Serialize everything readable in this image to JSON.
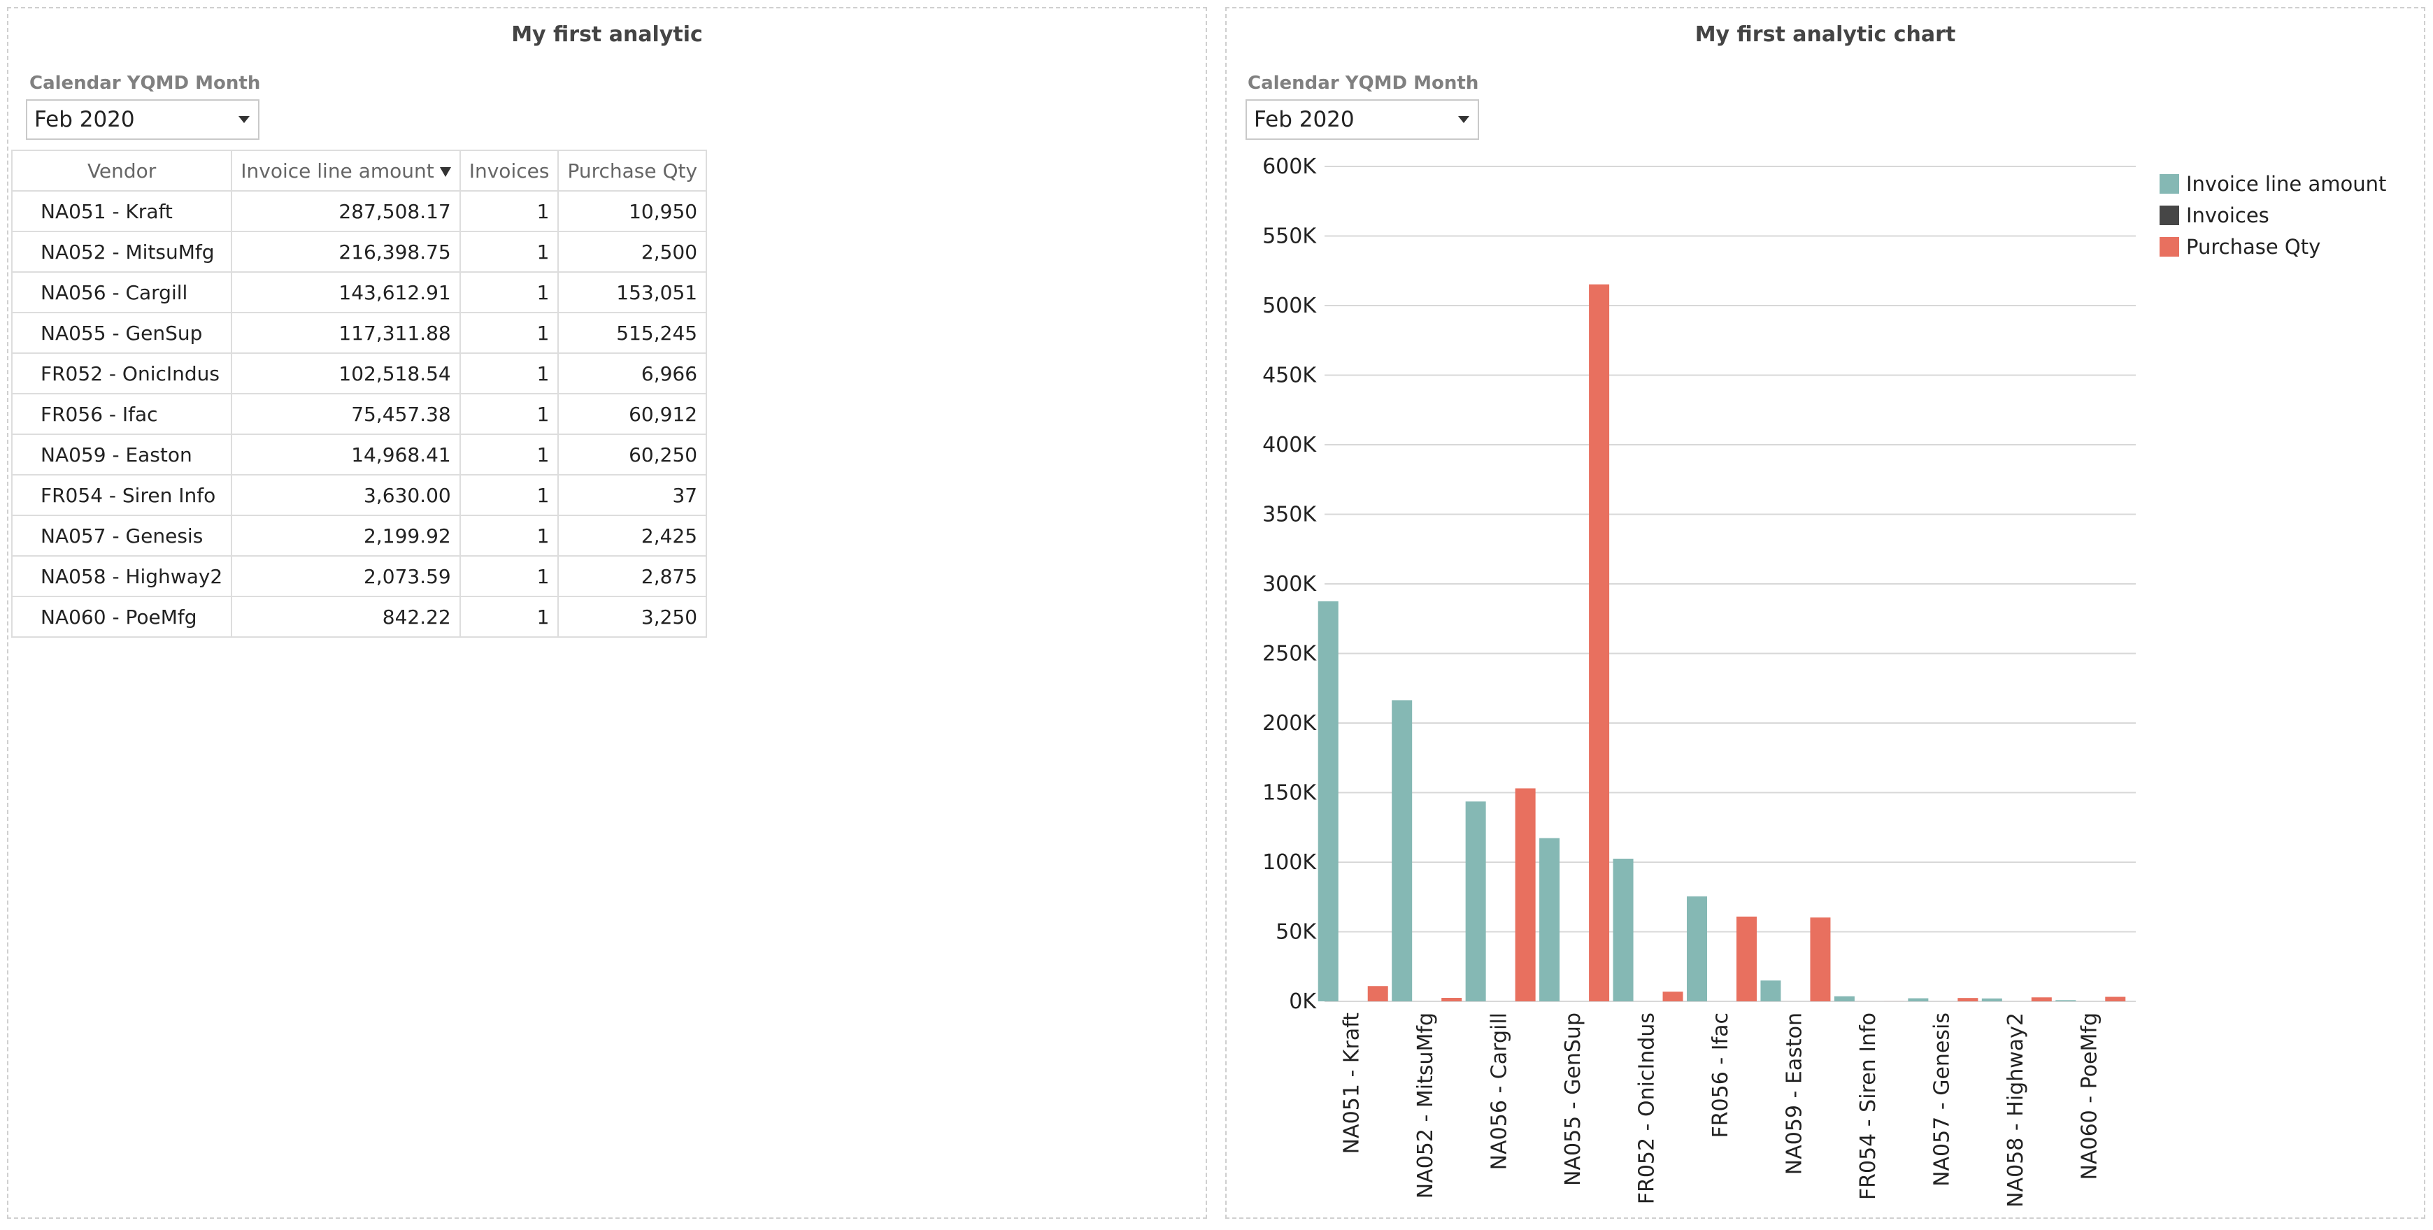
{
  "left_panel": {
    "title": "My first analytic",
    "filter_label": "Calendar YQMD Month",
    "filter_value": "Feb 2020",
    "table": {
      "columns": [
        "Vendor",
        "Invoice line amount",
        "Invoices",
        "Purchase Qty"
      ],
      "rows": [
        {
          "vendor": "NA051 - Kraft",
          "amount": "287,508.17",
          "invoices": "1",
          "qty": "10,950"
        },
        {
          "vendor": "NA052 - MitsuMfg",
          "amount": "216,398.75",
          "invoices": "1",
          "qty": "2,500"
        },
        {
          "vendor": "NA056 - Cargill",
          "amount": "143,612.91",
          "invoices": "1",
          "qty": "153,051"
        },
        {
          "vendor": "NA055 - GenSup",
          "amount": "117,311.88",
          "invoices": "1",
          "qty": "515,245"
        },
        {
          "vendor": "FR052 - OnicIndus",
          "amount": "102,518.54",
          "invoices": "1",
          "qty": "6,966"
        },
        {
          "vendor": "FR056 - Ifac",
          "amount": "75,457.38",
          "invoices": "1",
          "qty": "60,912"
        },
        {
          "vendor": "NA059 - Easton",
          "amount": "14,968.41",
          "invoices": "1",
          "qty": "60,250"
        },
        {
          "vendor": "FR054 - Siren Info",
          "amount": "3,630.00",
          "invoices": "1",
          "qty": "37"
        },
        {
          "vendor": "NA057 - Genesis",
          "amount": "2,199.92",
          "invoices": "1",
          "qty": "2,425"
        },
        {
          "vendor": "NA058 - Highway2",
          "amount": "2,073.59",
          "invoices": "1",
          "qty": "2,875"
        },
        {
          "vendor": "NA060 - PoeMfg",
          "amount": "842.22",
          "invoices": "1",
          "qty": "3,250"
        }
      ]
    }
  },
  "right_panel": {
    "title": "My first analytic chart",
    "filter_label": "Calendar YQMD Month",
    "filter_value": "Feb 2020"
  },
  "chart_data": {
    "type": "bar",
    "categories": [
      "NA051 - Kraft",
      "NA052 - MitsuMfg",
      "NA056 - Cargill",
      "NA055 - GenSup",
      "FR052 - OnicIndus",
      "FR056 - Ifac",
      "NA059 - Easton",
      "FR054 - Siren Info",
      "NA057 - Genesis",
      "NA058 - Highway2",
      "NA060 - PoeMfg"
    ],
    "series": [
      {
        "name": "Invoice line amount",
        "color": "#85b8b4",
        "values": [
          287508.17,
          216398.75,
          143612.91,
          117311.88,
          102518.54,
          75457.38,
          14968.41,
          3630.0,
          2199.92,
          2073.59,
          842.22
        ]
      },
      {
        "name": "Invoices",
        "color": "#464646",
        "values": [
          1,
          1,
          1,
          1,
          1,
          1,
          1,
          1,
          1,
          1,
          1
        ]
      },
      {
        "name": "Purchase Qty",
        "color": "#e8705f",
        "values": [
          10950,
          2500,
          153051,
          515245,
          6966,
          60912,
          60250,
          37,
          2425,
          2875,
          3250
        ]
      }
    ],
    "ylim": [
      0,
      600000
    ],
    "yticks": [
      0,
      50000,
      100000,
      150000,
      200000,
      250000,
      300000,
      350000,
      400000,
      450000,
      500000,
      550000,
      600000
    ],
    "ytick_labels": [
      "0K",
      "50K",
      "100K",
      "150K",
      "200K",
      "250K",
      "300K",
      "350K",
      "400K",
      "450K",
      "500K",
      "550K",
      "600K"
    ],
    "grid": true,
    "legend_position": "top-right"
  }
}
